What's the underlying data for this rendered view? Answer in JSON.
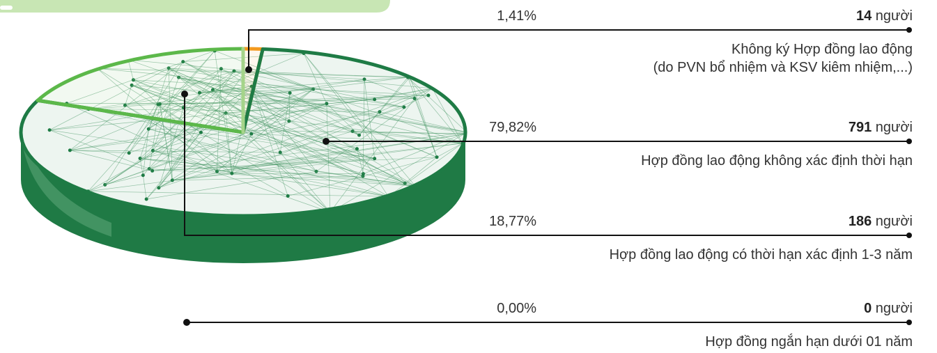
{
  "chart_data": {
    "type": "pie",
    "categories": [
      "Không ký Hợp đồng lao động\n(do PVN bổ nhiệm và KSV kiêm nhiệm,...)",
      "Hợp đồng lao động không xác định thời hạn",
      "Hợp đồng lao động có thời hạn xác định 1-3 năm",
      "Hợp đồng ngắn hạn dưới 01 năm"
    ],
    "values": [
      1.41,
      79.82,
      18.77,
      0
    ],
    "value_labels": [
      "1,41%",
      "79,82%",
      "18,77%",
      "0,00%"
    ],
    "counts": [
      14,
      791,
      186,
      0
    ],
    "unit": "người",
    "colors": [
      "#f39a1f",
      "#1e7b45",
      "#5cb84a",
      "#a5d48a"
    ]
  }
}
